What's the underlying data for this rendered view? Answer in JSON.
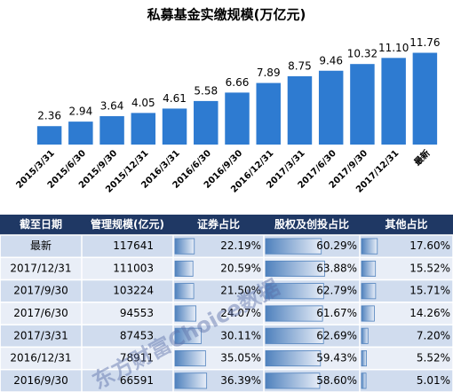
{
  "chart_data": {
    "type": "bar",
    "title": "私募基金实缴规模(万亿元)",
    "categories": [
      "2015/3/31",
      "2015/6/30",
      "2015/9/30",
      "2015/12/31",
      "2016/3/31",
      "2016/6/30",
      "2016/9/30",
      "2016/12/31",
      "2017/3/31",
      "2017/6/30",
      "2017/9/30",
      "2017/12/31",
      "最新"
    ],
    "values": [
      2.36,
      2.94,
      3.64,
      4.05,
      4.61,
      5.58,
      6.66,
      7.89,
      8.75,
      9.46,
      10.32,
      11.1,
      11.76
    ],
    "value_labels": [
      "2.36",
      "2.94",
      "3.64",
      "4.05",
      "4.61",
      "5.58",
      "6.66",
      "7.89",
      "8.75",
      "9.46",
      "10.32",
      "11.10",
      "11.76"
    ],
    "color": "#2e7bd1"
  },
  "table": {
    "columns": [
      "截至日期",
      "管理规模(亿元)",
      "证券占比",
      "股权及创投占比",
      "其他占比"
    ],
    "rows": [
      [
        "最新",
        117641,
        {
          "value": 22.19,
          "label": "22.19%"
        },
        {
          "value": 60.29,
          "label": "60.29%"
        },
        {
          "value": 17.6,
          "label": "17.60%"
        }
      ],
      [
        "2017/12/31",
        111003,
        {
          "value": 20.59,
          "label": "20.59%"
        },
        {
          "value": 63.88,
          "label": "63.88%"
        },
        {
          "value": 15.52,
          "label": "15.52%"
        }
      ],
      [
        "2017/9/30",
        103224,
        {
          "value": 21.5,
          "label": "21.50%"
        },
        {
          "value": 62.79,
          "label": "62.79%"
        },
        {
          "value": 15.71,
          "label": "15.71%"
        }
      ],
      [
        "2017/6/30",
        94553,
        {
          "value": 24.07,
          "label": "24.07%"
        },
        {
          "value": 61.67,
          "label": "61.67%"
        },
        {
          "value": 14.26,
          "label": "14.26%"
        }
      ],
      [
        "2017/3/31",
        87453,
        {
          "value": 30.11,
          "label": "30.11%"
        },
        {
          "value": 62.69,
          "label": "62.69%"
        },
        {
          "value": 7.2,
          "label": "7.20%"
        }
      ],
      [
        "2016/12/31",
        78911,
        {
          "value": 35.05,
          "label": "35.05%"
        },
        {
          "value": 59.43,
          "label": "59.43%"
        },
        {
          "value": 5.52,
          "label": "5.52%"
        }
      ],
      [
        "2016/9/30",
        66591,
        {
          "value": 36.39,
          "label": "36.39%"
        },
        {
          "value": 58.6,
          "label": "58.60%"
        },
        {
          "value": 5.01,
          "label": "5.01%"
        }
      ]
    ]
  },
  "watermark": "东方财富Choice数据"
}
